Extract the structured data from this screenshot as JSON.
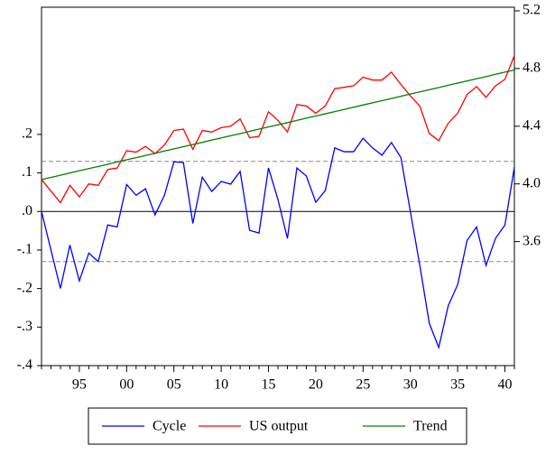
{
  "chart_data": {
    "type": "line",
    "categories": [
      null,
      null,
      null,
      null,
      "95",
      null,
      null,
      null,
      null,
      "00",
      null,
      null,
      null,
      null,
      "05",
      null,
      null,
      null,
      null,
      "10",
      null,
      null,
      null,
      null,
      "15",
      null,
      null,
      null,
      null,
      "20",
      null,
      null,
      null,
      null,
      "25",
      null,
      null,
      null,
      null,
      "30",
      null,
      null,
      null,
      null,
      "35",
      null,
      null,
      null,
      null,
      "40",
      null
    ],
    "series": [
      {
        "name": "Cycle",
        "color": "#0000ff",
        "axis": "y",
        "values": [
          0,
          -0.1,
          -0.2,
          -0.087,
          -0.18,
          -0.108,
          -0.13,
          -0.035,
          -0.04,
          0.07,
          0.042,
          0.059,
          -0.009,
          0.042,
          0.129,
          0.127,
          -0.031,
          0.089,
          0.052,
          0.078,
          0.071,
          0.104,
          -0.049,
          -0.056,
          0.113,
          0.031,
          -0.07,
          0.113,
          0.092,
          0.024,
          0.054,
          0.165,
          0.155,
          0.155,
          0.19,
          0.165,
          0.146,
          0.179,
          0.14,
          0.0,
          -0.14,
          -0.29,
          -0.353,
          -0.245,
          -0.19,
          -0.075,
          -0.04,
          -0.14,
          -0.07,
          -0.035,
          0.115
        ]
      },
      {
        "name": "US output",
        "color": "#ff0000",
        "axis": "y2",
        "values": [
          4.03,
          3.95,
          3.87,
          3.99,
          3.91,
          4.0,
          3.99,
          4.1,
          4.11,
          4.23,
          4.22,
          4.26,
          4.21,
          4.27,
          4.37,
          4.38,
          4.24,
          4.37,
          4.36,
          4.39,
          4.4,
          4.45,
          4.32,
          4.33,
          4.5,
          4.44,
          4.36,
          4.55,
          4.54,
          4.49,
          4.54,
          4.66,
          4.67,
          4.68,
          4.74,
          4.72,
          4.72,
          4.775,
          4.69,
          4.61,
          4.54,
          4.35,
          4.3,
          4.42,
          4.49,
          4.62,
          4.675,
          4.6,
          4.68,
          4.725,
          4.89
        ]
      },
      {
        "name": "Trend",
        "color": "#008000",
        "axis": "y2",
        "values": [
          4.03,
          4.045,
          4.06,
          4.076,
          4.091,
          4.106,
          4.121,
          4.136,
          4.152,
          4.167,
          4.182,
          4.197,
          4.212,
          4.228,
          4.243,
          4.258,
          4.273,
          4.288,
          4.304,
          4.319,
          4.334,
          4.349,
          4.364,
          4.38,
          4.395,
          4.41,
          4.425,
          4.44,
          4.456,
          4.471,
          4.486,
          4.501,
          4.516,
          4.532,
          4.547,
          4.562,
          4.577,
          4.592,
          4.608,
          4.623,
          4.638,
          4.653,
          4.668,
          4.684,
          4.699,
          4.714,
          4.729,
          4.744,
          4.76,
          4.775,
          4.79
        ]
      }
    ],
    "ylim": [
      -0.4,
      0.53
    ],
    "yticks": [
      {
        "value": 0.2,
        "label": ".2"
      },
      {
        "value": 0.1,
        "label": ".1"
      },
      {
        "value": 0,
        "label": ".0"
      },
      {
        "value": -0.1,
        "label": "-.1"
      },
      {
        "value": -0.2,
        "label": "-.2"
      },
      {
        "value": -0.3,
        "label": "-.3"
      },
      {
        "value": -0.4,
        "label": "-.4"
      }
    ],
    "y2lim": [
      2.74,
      5.225
    ],
    "y2ticks": [
      5.2,
      4.8,
      4.4,
      {
        "value": 4.0,
        "label": "4.0"
      },
      3.6
    ],
    "reference_lines": [
      0.13,
      -0.13
    ],
    "legend": "bottom"
  }
}
